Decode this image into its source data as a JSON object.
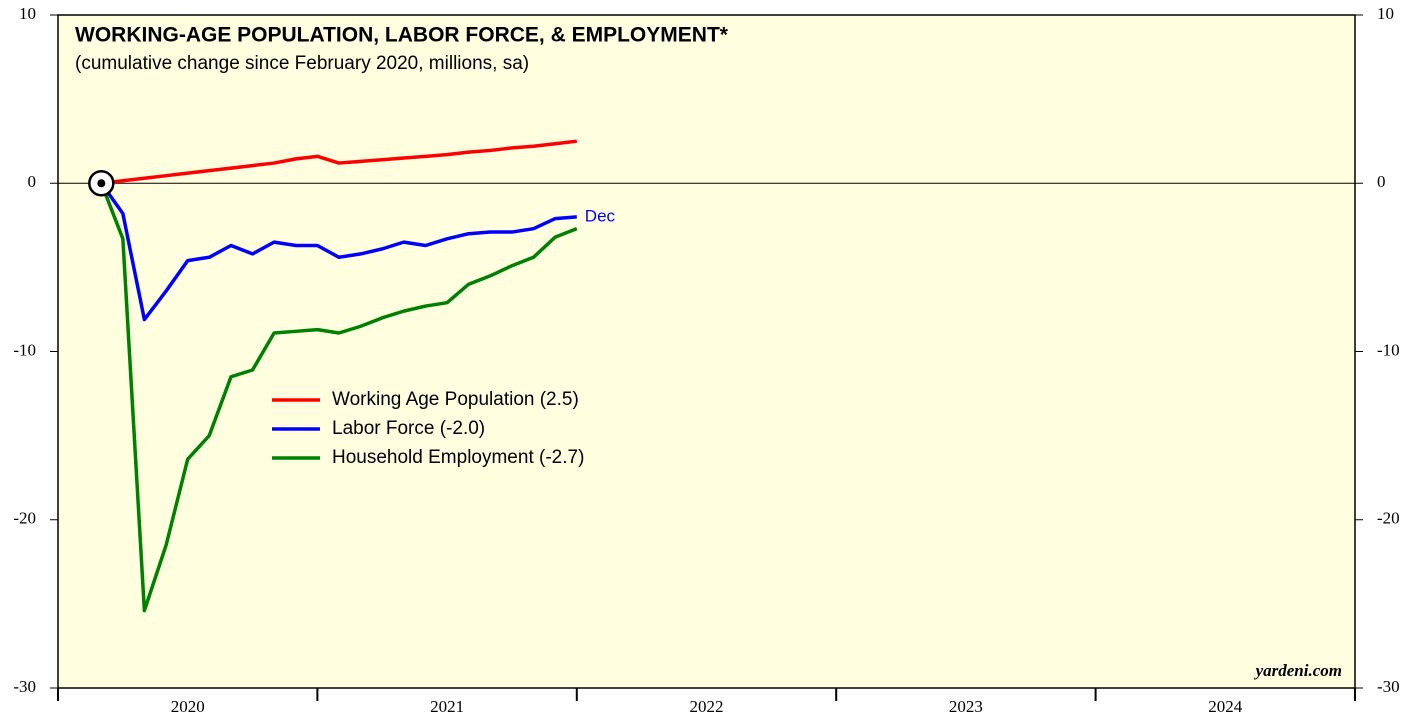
{
  "chart_data": {
    "type": "line",
    "title": "WORKING-AGE POPULATION, LABOR FORCE, & EMPLOYMENT*",
    "subtitle": "(cumulative change since February 2020, millions, sa)",
    "annotations": [
      "Dec",
      "yardeni.com"
    ],
    "x": [
      2020.167,
      2020.25,
      2020.333,
      2020.417,
      2020.5,
      2020.583,
      2020.667,
      2020.75,
      2020.833,
      2020.917,
      2021,
      2021.083,
      2021.167,
      2021.25,
      2021.333,
      2021.417,
      2021.5,
      2021.583,
      2021.667,
      2021.75,
      2021.833,
      2021.917,
      2022
    ],
    "series": [
      {
        "name": "Working Age Population (2.5)",
        "color": "#ff0000",
        "values": [
          0,
          0.15,
          0.3,
          0.45,
          0.6,
          0.75,
          0.9,
          1.05,
          1.2,
          1.45,
          1.6,
          1.2,
          1.3,
          1.4,
          1.5,
          1.6,
          1.7,
          1.85,
          1.95,
          2.1,
          2.2,
          2.35,
          2.5
        ]
      },
      {
        "name": "Labor Force (-2.0)",
        "color": "#0000ff",
        "values": [
          0,
          -1.8,
          -8.1,
          -6.4,
          -4.6,
          -4.4,
          -3.7,
          -4.2,
          -3.5,
          -3.7,
          -3.7,
          -4.4,
          -4.2,
          -3.9,
          -3.5,
          -3.7,
          -3.3,
          -3.0,
          -2.9,
          -2.9,
          -2.7,
          -2.1,
          -2.0
        ]
      },
      {
        "name": "Household Employment (-2.7)",
        "color": "#008000",
        "values": [
          0,
          -3.3,
          -25.4,
          -21.5,
          -16.4,
          -15.0,
          -11.5,
          -11.1,
          -8.9,
          -8.8,
          -8.7,
          -8.9,
          -8.5,
          -8.0,
          -7.6,
          -7.3,
          -7.1,
          -6.0,
          -5.5,
          -4.9,
          -4.4,
          -3.2,
          -2.7
        ]
      }
    ],
    "xlim": [
      2020,
      2025
    ],
    "xticks": [
      2020,
      2021,
      2022,
      2023,
      2024,
      2025
    ],
    "ylim": [
      -30,
      10
    ],
    "yticks": [
      -30,
      -20,
      -10,
      0,
      10
    ],
    "background": "#ffffe0"
  }
}
